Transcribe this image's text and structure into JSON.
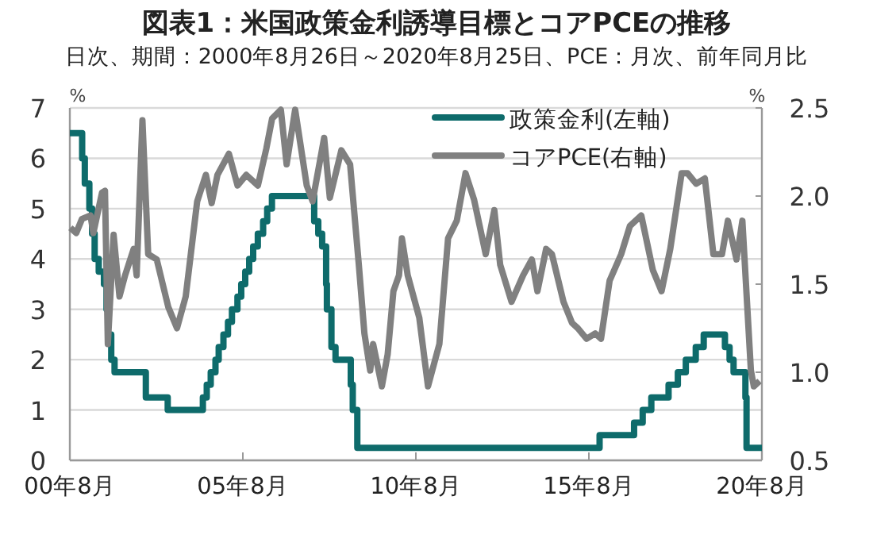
{
  "chart_data": {
    "type": "line",
    "title": "図表1：米国政策金利誘導目標とコアPCEの推移",
    "subtitle": "日次、期間：2000年8月26日～2020年8月25日、PCE：月次、前年同月比",
    "ylabel": "%",
    "y2label": "%",
    "xlim": [
      "2000-08-26",
      "2020-08-25"
    ],
    "xticks": [
      {
        "value": "2000-08-26",
        "label": "00年8月"
      },
      {
        "value": "2005-08-26",
        "label": "05年8月"
      },
      {
        "value": "2010-08-26",
        "label": "10年8月"
      },
      {
        "value": "2015-08-26",
        "label": "15年8月"
      },
      {
        "value": "2020-08-25",
        "label": "20年8月"
      }
    ],
    "ylim": [
      0,
      7
    ],
    "yticks": [
      0,
      1,
      2,
      3,
      4,
      5,
      6,
      7
    ],
    "y2lim": [
      0.5,
      2.5
    ],
    "y2ticks": [
      {
        "value": 0.5,
        "label": "0.5"
      },
      {
        "value": 1,
        "label": "1.0"
      },
      {
        "value": 1.5,
        "label": "1.5"
      },
      {
        "value": 2,
        "label": "2.0"
      },
      {
        "value": 2.5,
        "label": "2.5"
      }
    ],
    "grid": "y",
    "legend": "top right",
    "series": [
      {
        "name": "政策金利(左軸)",
        "type": "step",
        "color": "#0e6b6b",
        "x": [
          "2000-08-26",
          "2001-01-03",
          "2001-01-31",
          "2001-03-20",
          "2001-04-18",
          "2001-05-15",
          "2001-06-27",
          "2001-08-21",
          "2001-09-17",
          "2001-10-02",
          "2001-11-06",
          "2001-12-11",
          "2002-11-06",
          "2003-06-25",
          "2004-06-30",
          "2004-08-10",
          "2004-09-21",
          "2004-11-10",
          "2004-12-14",
          "2005-02-02",
          "2005-03-22",
          "2005-05-03",
          "2005-06-30",
          "2005-08-09",
          "2005-09-20",
          "2005-11-01",
          "2005-12-13",
          "2006-01-31",
          "2006-03-28",
          "2006-05-10",
          "2006-06-29",
          "2007-09-18",
          "2007-10-31",
          "2007-12-11",
          "2008-01-22",
          "2008-01-30",
          "2008-03-18",
          "2008-04-30",
          "2008-10-08",
          "2008-10-29",
          "2008-12-16",
          "2015-12-17",
          "2016-12-15",
          "2017-03-16",
          "2017-06-15",
          "2017-12-14",
          "2018-03-22",
          "2018-06-14",
          "2018-09-27",
          "2018-12-20",
          "2019-08-01",
          "2019-09-19",
          "2019-10-31",
          "2020-03-04",
          "2020-03-16",
          "2020-08-25"
        ],
        "values": [
          6.5,
          6.0,
          5.5,
          5.0,
          4.5,
          4.0,
          3.75,
          3.5,
          3.0,
          2.5,
          2.0,
          1.75,
          1.25,
          1.0,
          1.25,
          1.5,
          1.75,
          2.0,
          2.25,
          2.5,
          2.75,
          3.0,
          3.25,
          3.5,
          3.75,
          4.0,
          4.25,
          4.5,
          4.75,
          5.0,
          5.25,
          4.75,
          4.5,
          4.25,
          3.5,
          3.0,
          2.25,
          2.0,
          1.5,
          1.0,
          0.25,
          0.5,
          0.75,
          1.0,
          1.25,
          1.5,
          1.75,
          2.0,
          2.25,
          2.5,
          2.25,
          2.0,
          1.75,
          1.25,
          0.25,
          0.25
        ]
      },
      {
        "name": "コアPCE(右軸)",
        "type": "line",
        "axis": "y2",
        "color": "#808080",
        "x": [
          "2000-09",
          "2000-11",
          "2001-01",
          "2001-04",
          "2001-05",
          "2001-08",
          "2001-09",
          "2001-10",
          "2001-12",
          "2002-02",
          "2002-04",
          "2002-07",
          "2002-08",
          "2002-10",
          "2002-12",
          "2003-03",
          "2003-07",
          "2003-10",
          "2004-01",
          "2004-05",
          "2004-08",
          "2004-10",
          "2004-12",
          "2005-04",
          "2005-07",
          "2005-10",
          "2006-02",
          "2006-05",
          "2006-07",
          "2006-10",
          "2006-12",
          "2007-03",
          "2007-07",
          "2007-09",
          "2008-01",
          "2008-03",
          "2008-07",
          "2008-10",
          "2009-01",
          "2009-03",
          "2009-05",
          "2009-06",
          "2009-09",
          "2009-11",
          "2010-01",
          "2010-03",
          "2010-04",
          "2010-06",
          "2010-10",
          "2011-01",
          "2011-05",
          "2011-08",
          "2011-11",
          "2012-02",
          "2012-05",
          "2012-09",
          "2012-12",
          "2013-02",
          "2013-06",
          "2013-10",
          "2014-01",
          "2014-03",
          "2014-06",
          "2014-08",
          "2014-12",
          "2015-03",
          "2015-05",
          "2015-08",
          "2015-11",
          "2016-01",
          "2016-04",
          "2016-08",
          "2016-11",
          "2017-03",
          "2017-07",
          "2017-10",
          "2018-01",
          "2018-05",
          "2018-07",
          "2018-10",
          "2019-01",
          "2019-04",
          "2019-07",
          "2019-09",
          "2019-12",
          "2020-02",
          "2020-05",
          "2020-06",
          "2020-08"
        ],
        "values": [
          1.82,
          1.79,
          1.87,
          1.89,
          1.79,
          2.02,
          2.03,
          1.16,
          1.78,
          1.43,
          1.55,
          1.7,
          1.55,
          2.43,
          1.67,
          1.64,
          1.37,
          1.25,
          1.43,
          1.97,
          2.12,
          1.96,
          2.12,
          2.24,
          2.06,
          2.12,
          2.06,
          2.27,
          2.44,
          2.49,
          2.18,
          2.49,
          2.06,
          1.97,
          2.33,
          1.99,
          2.26,
          2.18,
          1.61,
          1.22,
          1.01,
          1.16,
          0.92,
          1.1,
          1.46,
          1.55,
          1.76,
          1.55,
          1.31,
          0.92,
          1.16,
          1.76,
          1.86,
          2.13,
          1.98,
          1.67,
          1.92,
          1.61,
          1.4,
          1.55,
          1.64,
          1.46,
          1.7,
          1.67,
          1.4,
          1.28,
          1.25,
          1.19,
          1.22,
          1.19,
          1.52,
          1.67,
          1.83,
          1.89,
          1.58,
          1.46,
          1.7,
          2.13,
          2.13,
          2.07,
          2.1,
          1.67,
          1.67,
          1.86,
          1.64,
          1.86,
          1.01,
          0.92,
          0.95
        ]
      }
    ]
  }
}
